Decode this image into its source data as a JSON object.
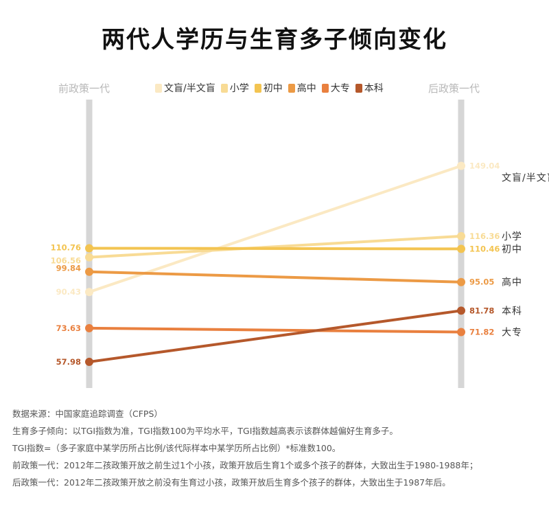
{
  "title": "两代人学历与生育多子倾向变化",
  "left_column_label": "前政策一代",
  "right_column_label": "后政策一代",
  "chart_data": {
    "type": "line",
    "x": [
      "前政策一代",
      "后政策一代"
    ],
    "series": [
      {
        "name": "文盲/半文盲",
        "values": [
          90.43,
          149.04
        ],
        "left_label": "90.43",
        "right_label": "149.04",
        "color": "#fbe9c3"
      },
      {
        "name": "小学",
        "values": [
          106.56,
          116.36
        ],
        "left_label": "106.56",
        "right_label": "116.36",
        "color": "#f8db95"
      },
      {
        "name": "初中",
        "values": [
          110.76,
          110.46
        ],
        "left_label": "110.76",
        "right_label": "110.46",
        "color": "#f3c451"
      },
      {
        "name": "高中",
        "values": [
          99.84,
          95.05
        ],
        "left_label": "99.84",
        "right_label": "95.05",
        "color": "#ec9a45"
      },
      {
        "name": "大专",
        "values": [
          73.63,
          71.82
        ],
        "left_label": "73.63",
        "right_label": "71.82",
        "color": "#e9803f"
      },
      {
        "name": "本科",
        "values": [
          57.98,
          81.78
        ],
        "left_label": "57.98",
        "right_label": "81.78",
        "color": "#b5582b"
      }
    ],
    "legend_position": "top-center"
  },
  "notes": [
    "数据来源：中国家庭追踪调查（CFPS）",
    "生育多子倾向：以TGI指数为准，TGI指数100为平均水平，TGI指数越高表示该群体越偏好生育多子。",
    "TGI指数=（多子家庭中某学历所占比例/该代际样本中某学历所占比例）*标准数100。",
    "前政策一代：2012年二孩政策开放之前生过1个小孩，政策开放后生育1个或多个孩子的群体，大致出生于1980-1988年；",
    "后政策一代：2012年二孩政策开放之前没有生育过小孩，政策开放后生育多个孩子的群体，大致出生于1987年后。"
  ]
}
